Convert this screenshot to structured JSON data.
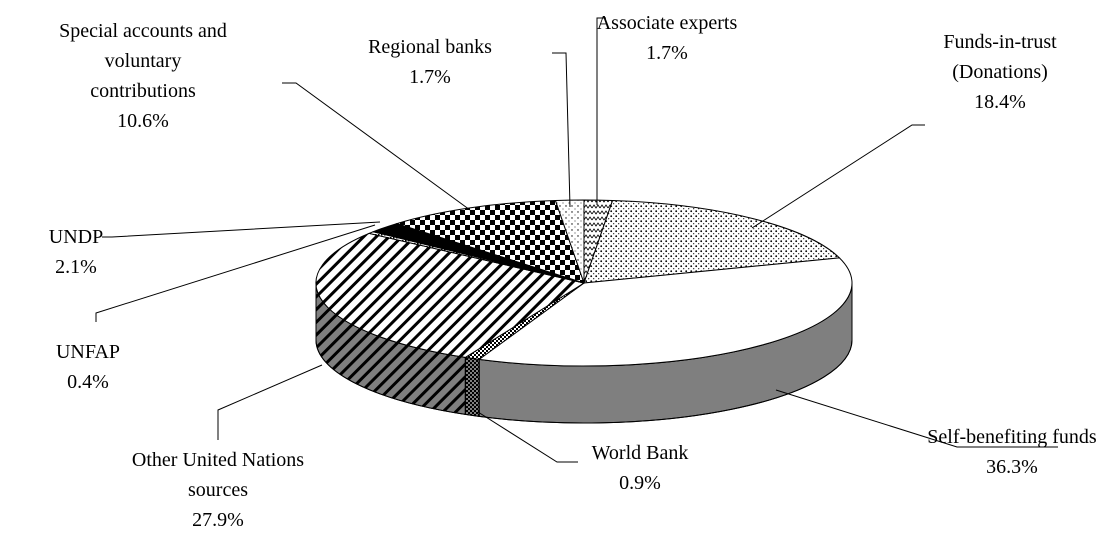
{
  "chart_data": {
    "type": "pie3d",
    "categories": [
      "Associate experts",
      "Funds-in-trust\n(Donations)",
      "Self-benefiting funds",
      "World Bank",
      "Other United Nations\nsources",
      "UNFAP",
      "UNDP",
      "Special accounts and\nvoluntary\ncontributions",
      "Regional banks"
    ],
    "values": [
      1.7,
      18.4,
      36.3,
      0.9,
      27.9,
      0.4,
      2.1,
      10.6,
      1.7
    ],
    "value_labels": [
      "1.7%",
      "18.4%",
      "36.3%",
      "0.9%",
      "27.9%",
      "0.4%",
      "2.1%",
      "10.6%",
      "1.7%"
    ],
    "colors": [
      "#ffffff",
      "#ffffff",
      "#ffffff",
      "#ffffff",
      "#ffffff",
      "#ffffff",
      "#000000",
      "#ffffff",
      "#ffffff"
    ]
  }
}
